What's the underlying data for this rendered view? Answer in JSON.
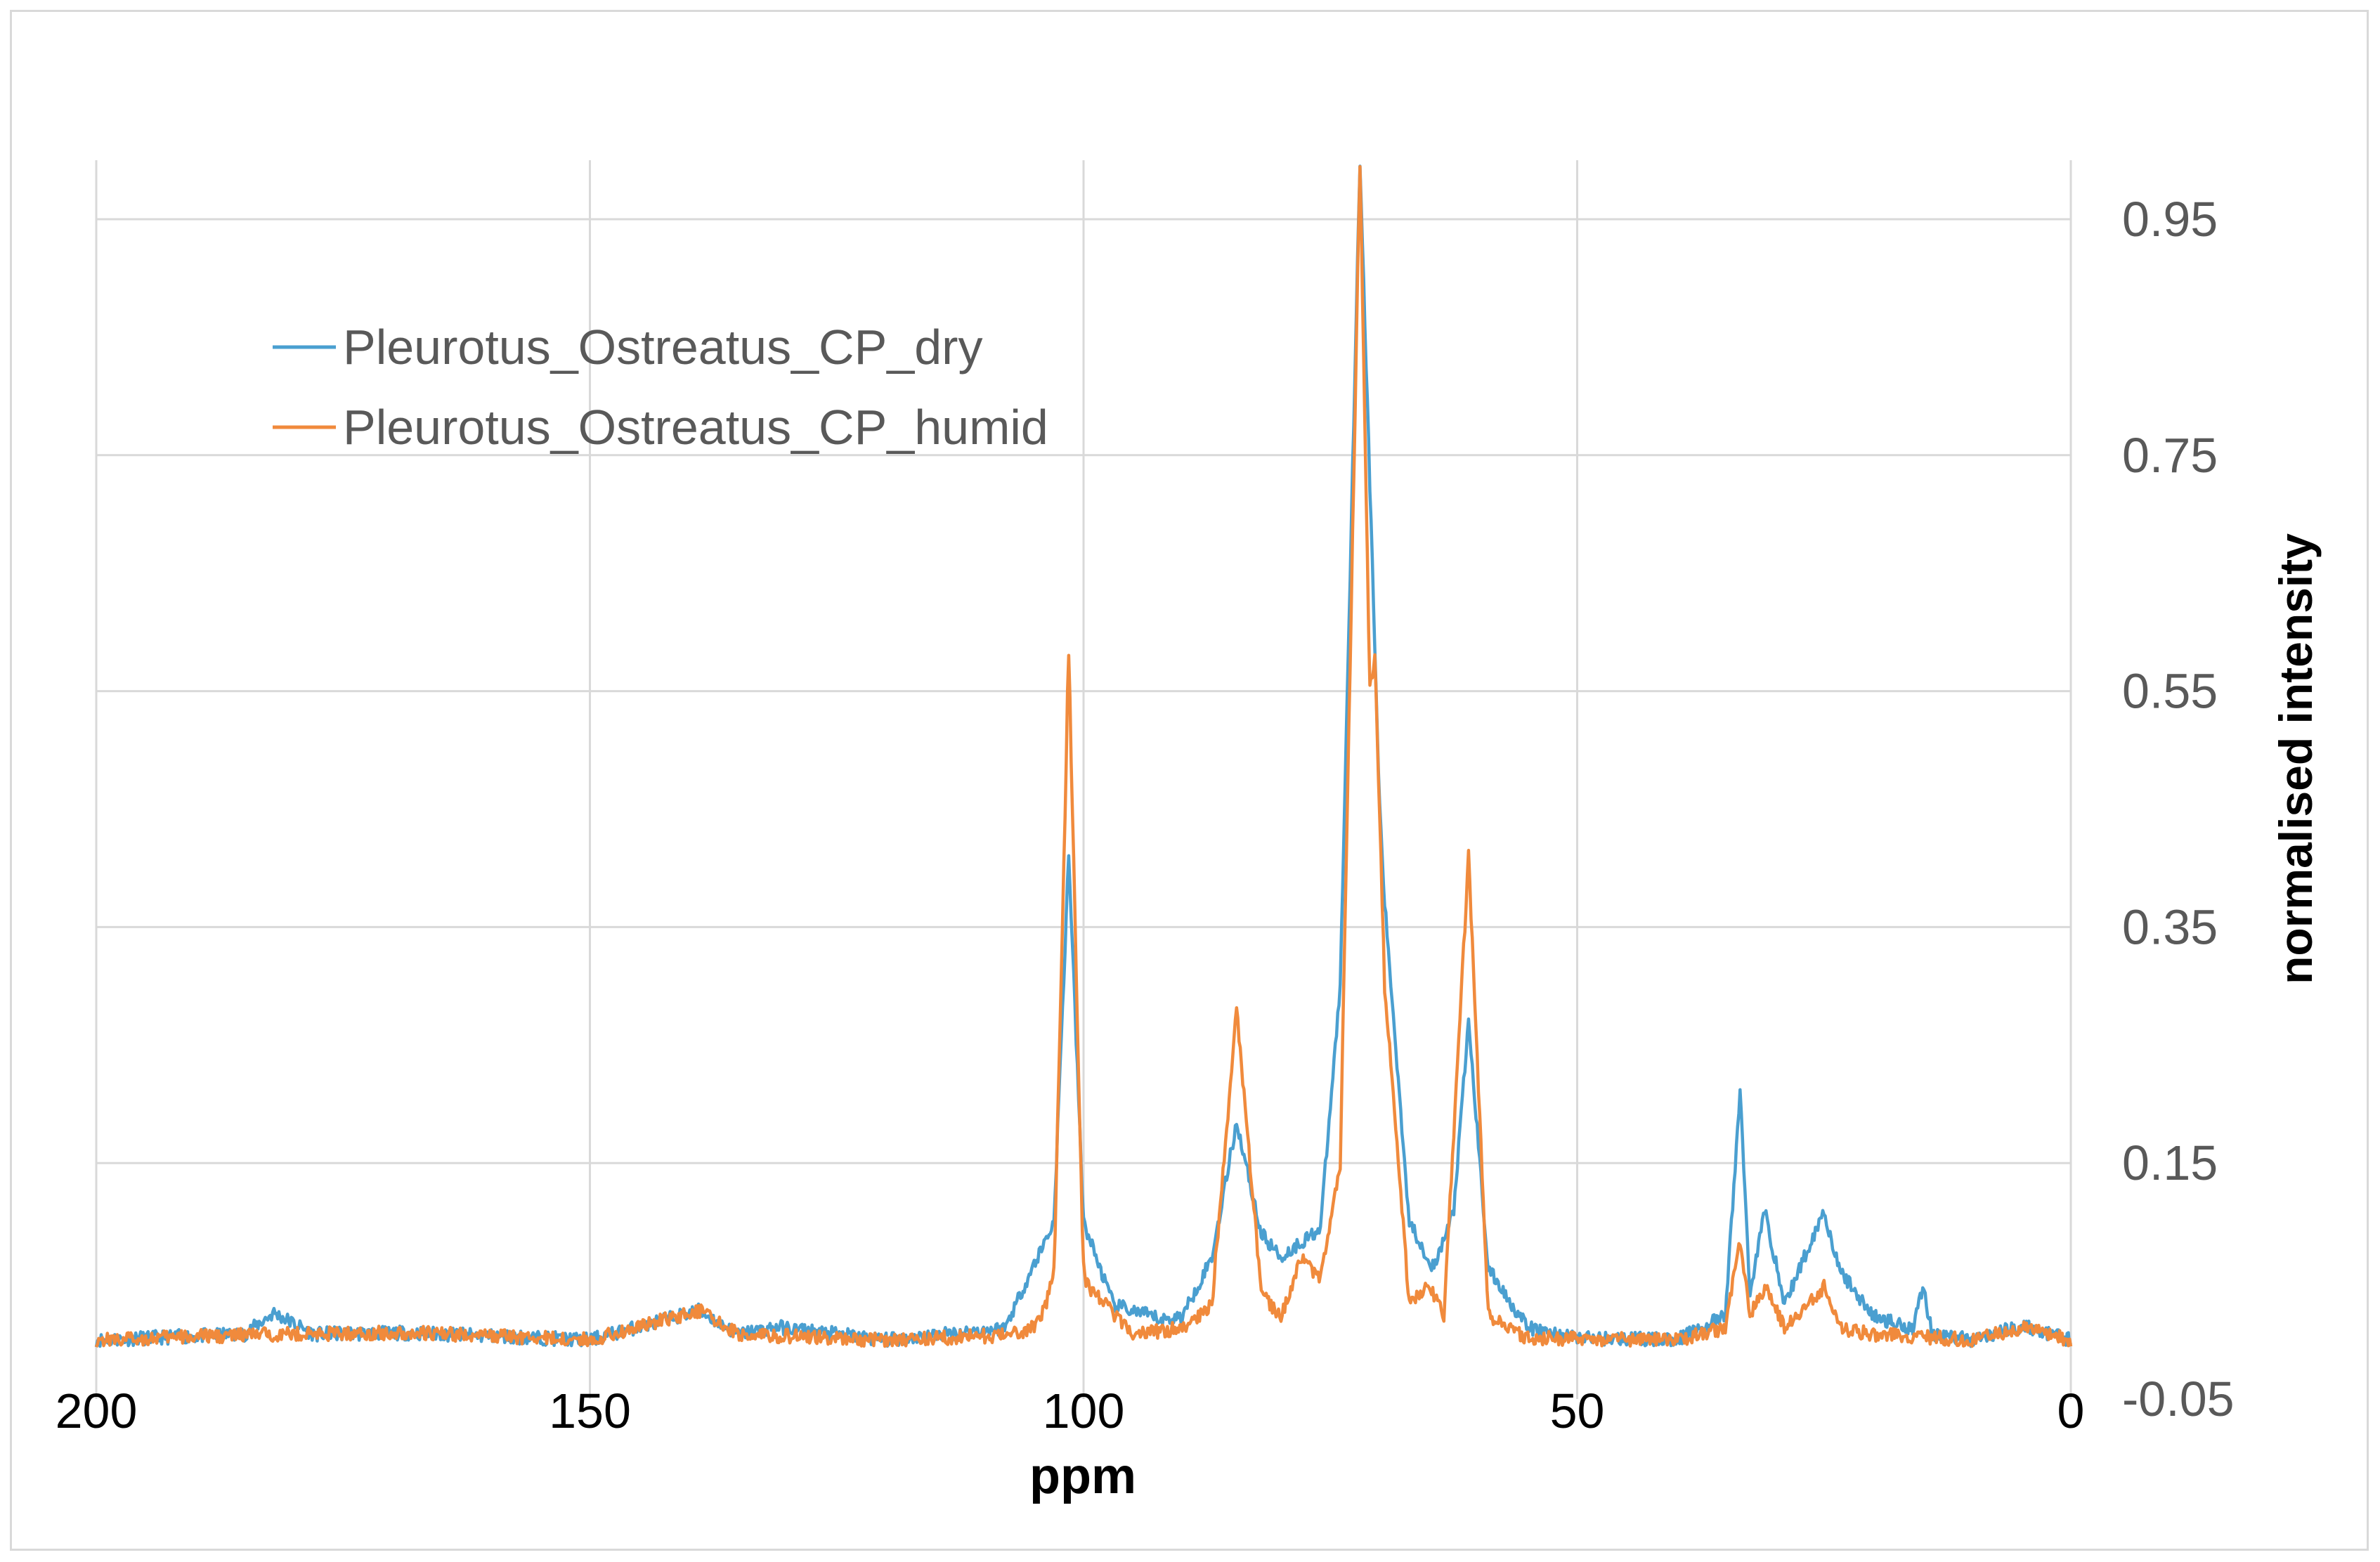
{
  "chart_data": {
    "type": "line",
    "title": "",
    "xlabel": "ppm",
    "ylabel": "normalised intensity",
    "x_reversed": true,
    "xlim": [
      200,
      0
    ],
    "ylim": [
      -0.05,
      1.0
    ],
    "x_ticks": [
      200,
      150,
      100,
      50,
      0
    ],
    "y_ticks": [
      -0.05,
      0.15,
      0.35,
      0.55,
      0.75,
      0.95
    ],
    "y_axis_side": "right",
    "grid": true,
    "legend_position": "top-left",
    "series": [
      {
        "name": "Pleurotus_Ostreatus_CP_dry",
        "color": "#4a9fd0",
        "peaks": [
          [
            182,
            0.023
          ],
          [
            168,
            0.006
          ],
          [
            139,
            0.025
          ],
          [
            131,
            0.011
          ],
          [
            101.5,
            0.41
          ],
          [
            92,
            0.017
          ],
          [
            84.5,
            0.185
          ],
          [
            76,
            0.095
          ],
          [
            72,
            1.0
          ],
          [
            69.5,
            0.37
          ],
          [
            64.5,
            0.06
          ],
          [
            61,
            0.27
          ],
          [
            33.5,
            0.21
          ],
          [
            31,
            0.11
          ],
          [
            25,
            0.11
          ],
          [
            23.5,
            0.06
          ],
          [
            15,
            0.045
          ],
          [
            5,
            0.012
          ]
        ],
        "points": [
          [
            200,
            0.0
          ],
          [
            185,
            0.005
          ],
          [
            182,
            0.023
          ],
          [
            178,
            0.005
          ],
          [
            168,
            0.006
          ],
          [
            150,
            0.0
          ],
          [
            139,
            0.025
          ],
          [
            135,
            0.005
          ],
          [
            131,
            0.011
          ],
          [
            120,
            0.0
          ],
          [
            108,
            0.01
          ],
          [
            103,
            0.1
          ],
          [
            101.5,
            0.41
          ],
          [
            100,
            0.1
          ],
          [
            97,
            0.03
          ],
          [
            92,
            0.017
          ],
          [
            90,
            0.02
          ],
          [
            87,
            0.07
          ],
          [
            84.5,
            0.185
          ],
          [
            82,
            0.09
          ],
          [
            80,
            0.07
          ],
          [
            76,
            0.095
          ],
          [
            74,
            0.3
          ],
          [
            72,
            1.0
          ],
          [
            70,
            0.45
          ],
          [
            69.5,
            0.37
          ],
          [
            67,
            0.1
          ],
          [
            64.5,
            0.06
          ],
          [
            62.5,
            0.11
          ],
          [
            61,
            0.27
          ],
          [
            59,
            0.06
          ],
          [
            55,
            0.01
          ],
          [
            50,
            0.002
          ],
          [
            40,
            0.0
          ],
          [
            35,
            0.02
          ],
          [
            33.5,
            0.21
          ],
          [
            32.5,
            0.04
          ],
          [
            31,
            0.11
          ],
          [
            29,
            0.03
          ],
          [
            25,
            0.11
          ],
          [
            23.5,
            0.06
          ],
          [
            20,
            0.02
          ],
          [
            16,
            0.01
          ],
          [
            15,
            0.045
          ],
          [
            14,
            0.005
          ],
          [
            10,
            0.0
          ],
          [
            5,
            0.012
          ],
          [
            0,
            0.0
          ]
        ]
      },
      {
        "name": "Pleurotus_Ostreatus_CP_humid",
        "color": "#f08a3c",
        "peaks": [
          [
            182,
            0.005
          ],
          [
            168,
            0.006
          ],
          [
            139,
            0.025
          ],
          [
            101.5,
            0.58
          ],
          [
            84.5,
            0.28
          ],
          [
            78,
            0.07
          ],
          [
            72,
            1.0
          ],
          [
            70.5,
            0.58
          ],
          [
            69.5,
            0.3
          ],
          [
            65,
            0.045
          ],
          [
            61,
            0.41
          ],
          [
            33.5,
            0.085
          ],
          [
            31,
            0.045
          ],
          [
            25,
            0.045
          ],
          [
            5,
            0.01
          ]
        ],
        "points": [
          [
            200,
            0.0
          ],
          [
            182,
            0.005
          ],
          [
            168,
            0.006
          ],
          [
            150,
            0.0
          ],
          [
            139,
            0.025
          ],
          [
            135,
            0.005
          ],
          [
            120,
            0.0
          ],
          [
            105,
            0.005
          ],
          [
            103,
            0.05
          ],
          [
            101.5,
            0.58
          ],
          [
            100,
            0.05
          ],
          [
            95,
            0.005
          ],
          [
            90,
            0.01
          ],
          [
            87,
            0.03
          ],
          [
            84.5,
            0.28
          ],
          [
            82,
            0.04
          ],
          [
            80,
            0.02
          ],
          [
            78,
            0.07
          ],
          [
            76,
            0.05
          ],
          [
            74,
            0.15
          ],
          [
            72,
            1.0
          ],
          [
            71,
            0.55
          ],
          [
            70.5,
            0.58
          ],
          [
            69.5,
            0.3
          ],
          [
            67,
            0.03
          ],
          [
            65,
            0.045
          ],
          [
            63.5,
            0.02
          ],
          [
            61,
            0.41
          ],
          [
            59,
            0.02
          ],
          [
            55,
            0.0
          ],
          [
            40,
            0.0
          ],
          [
            35,
            0.01
          ],
          [
            33.5,
            0.085
          ],
          [
            32.5,
            0.02
          ],
          [
            31,
            0.045
          ],
          [
            29,
            0.01
          ],
          [
            25,
            0.045
          ],
          [
            23.5,
            0.01
          ],
          [
            20,
            0.005
          ],
          [
            10,
            0.0
          ],
          [
            5,
            0.01
          ],
          [
            0,
            0.0
          ]
        ]
      }
    ]
  }
}
